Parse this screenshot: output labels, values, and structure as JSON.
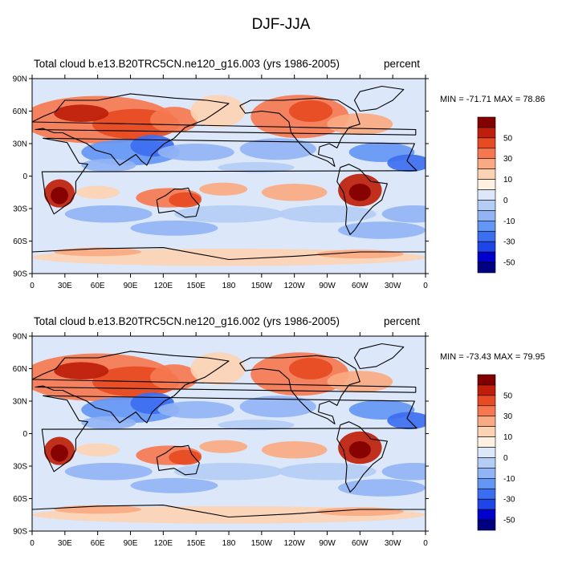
{
  "title": "DJF-JJA",
  "colorbar_colors": [
    "#000080",
    "#0000cc",
    "#1e46e6",
    "#3c6ef0",
    "#6496f5",
    "#91b4f5",
    "#b4cdf5",
    "#dce8fa",
    "#fff0e1",
    "#fcd2b4",
    "#faaa82",
    "#f57850",
    "#e64b23",
    "#be1e0a",
    "#820000"
  ],
  "colorbar_labels": [
    "50",
    "30",
    "10",
    "0",
    "-10",
    "-30",
    "-50"
  ],
  "lat_labels": [
    "90N",
    "60N",
    "30N",
    "0",
    "30S",
    "60S",
    "90S"
  ],
  "lon_labels": [
    "0",
    "30E",
    "60E",
    "90E",
    "120E",
    "150E",
    "180",
    "150W",
    "120W",
    "90W",
    "60W",
    "30W",
    "0"
  ],
  "panels": [
    {
      "left_title": "Total cloud",
      "center_title": "b.e13.B20TRC5CN.ne120_g16.003 (yrs 1986-2005)",
      "right_title": "percent",
      "min_max": "MIN = -71.71 MAX =  78.86"
    },
    {
      "left_title": "Total cloud",
      "center_title": "b.e13.B20TRC5CN.ne120_g16.002 (yrs 1986-2005)",
      "right_title": "percent",
      "min_max": "MIN = -73.43 MAX =  79.95"
    }
  ]
}
